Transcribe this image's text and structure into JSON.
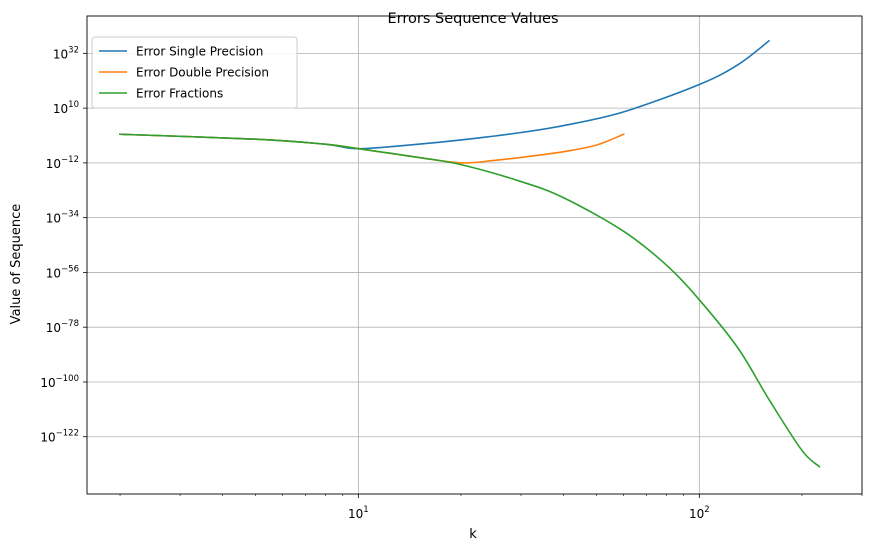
{
  "chart_data": {
    "type": "line",
    "title": "Errors Sequence Values",
    "xlabel": "k",
    "ylabel": "Value of Sequence",
    "xscale": "log",
    "yscale": "log",
    "xlim": [
      1.6,
      300
    ],
    "ylim_log10": [
      -145,
      47
    ],
    "grid": true,
    "legend": "upper-left",
    "x_ticks": [
      {
        "value": 10,
        "base": "10",
        "exp": "1"
      },
      {
        "value": 100,
        "base": "10",
        "exp": "2"
      }
    ],
    "y_ticks": [
      {
        "log10": 32,
        "base": "10",
        "exp": "32"
      },
      {
        "log10": 10,
        "base": "10",
        "exp": "10"
      },
      {
        "log10": -12,
        "base": "10",
        "exp": "−12"
      },
      {
        "log10": -34,
        "base": "10",
        "exp": "−34"
      },
      {
        "log10": -56,
        "base": "10",
        "exp": "−56"
      },
      {
        "log10": -78,
        "base": "10",
        "exp": "−78"
      },
      {
        "log10": -100,
        "base": "10",
        "exp": "−100"
      },
      {
        "log10": -122,
        "base": "10",
        "exp": "−122"
      }
    ],
    "series": [
      {
        "name": "Error Single Precision",
        "color": "#1f77b4",
        "points": [
          [
            2,
            -0.5
          ],
          [
            5,
            -2.5
          ],
          [
            8,
            -4.5
          ],
          [
            10,
            -6.3
          ],
          [
            15,
            -4.5
          ],
          [
            20,
            -2.8
          ],
          [
            30,
            0.2
          ],
          [
            40,
            3
          ],
          [
            60,
            8.5
          ],
          [
            100,
            19.5
          ],
          [
            130,
            27.5
          ],
          [
            160,
            37
          ]
        ]
      },
      {
        "name": "Error Double Precision",
        "color": "#ff7f0e",
        "points": [
          [
            2,
            -0.5
          ],
          [
            5,
            -2.5
          ],
          [
            8,
            -4.5
          ],
          [
            10,
            -6.3
          ],
          [
            15,
            -9.8
          ],
          [
            20,
            -12
          ],
          [
            25,
            -11
          ],
          [
            30,
            -9.8
          ],
          [
            40,
            -7.5
          ],
          [
            50,
            -4.8
          ],
          [
            60,
            -0.5
          ]
        ]
      },
      {
        "name": "Error Fractions",
        "color": "#2ca02c",
        "points": [
          [
            2,
            -0.5
          ],
          [
            5,
            -2.5
          ],
          [
            8,
            -4.5
          ],
          [
            10,
            -6.3
          ],
          [
            15,
            -9.8
          ],
          [
            20,
            -12.7
          ],
          [
            30,
            -19.5
          ],
          [
            40,
            -26
          ],
          [
            60,
            -39.5
          ],
          [
            80,
            -53
          ],
          [
            100,
            -67
          ],
          [
            130,
            -86.5
          ],
          [
            160,
            -107
          ],
          [
            200,
            -127.5
          ],
          [
            225,
            -134
          ]
        ]
      }
    ]
  }
}
